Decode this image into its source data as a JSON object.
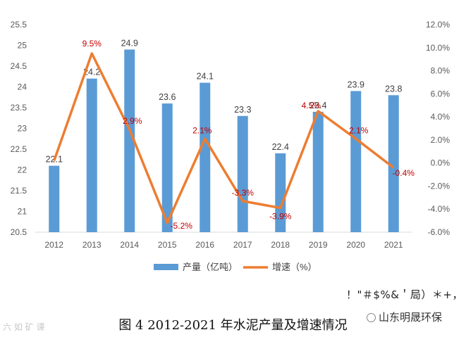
{
  "chart_data": {
    "type": "bar",
    "categories": [
      "2012",
      "2013",
      "2014",
      "2015",
      "2016",
      "2017",
      "2018",
      "2019",
      "2020",
      "2021"
    ],
    "series": [
      {
        "name": "产量（亿吨）",
        "kind": "bar",
        "axis": "left",
        "color": "#5b9bd5",
        "values": [
          22.1,
          24.2,
          24.9,
          23.6,
          24.1,
          23.3,
          22.4,
          23.4,
          23.9,
          23.8
        ],
        "labels": [
          "22.1",
          "24.2",
          "24.9",
          "23.6",
          "24.1",
          "23.3",
          "22.4",
          "23.4",
          "23.9",
          "23.8"
        ]
      },
      {
        "name": "增速（%）",
        "kind": "line",
        "axis": "right",
        "color": "#ed7d31",
        "values": [
          0.2,
          9.5,
          2.9,
          -5.2,
          2.1,
          -3.3,
          -3.9,
          4.5,
          2.1,
          -0.4
        ],
        "labels": [
          "",
          "9.5%",
          "2.9%",
          "-5.2%",
          "2.1%",
          "-3.3%",
          "-3.9%",
          "4.5%",
          "2.1%",
          "-0.4%"
        ]
      }
    ],
    "ylim_left": [
      20.5,
      25.5
    ],
    "yticks_left": [
      "20.5",
      "21",
      "21.5",
      "22",
      "22.5",
      "23",
      "23.5",
      "24",
      "24.5",
      "25",
      "25.5"
    ],
    "ylim_right": [
      -6,
      12
    ],
    "yticks_right": [
      "-6.0%",
      "-4.0%",
      "-2.0%",
      "0.0%",
      "2.0%",
      "4.0%",
      "6.0%",
      "8.0%",
      "10.0%",
      "12.0%"
    ],
    "legend_position": "bottom",
    "title": "图 4   2012-2021 年水泥产量及增速情况"
  },
  "caption": "图 4   2012-2021 年水泥产量及增速情况",
  "garbled_text": "！\"＃$%&＇局）＊+，",
  "watermark_left": "六 如 矿 课",
  "watermark_right": "山东明晟环保",
  "colors": {
    "bar": "#5b9bd5",
    "line": "#ed7d31",
    "pct_label": "#c00000"
  }
}
